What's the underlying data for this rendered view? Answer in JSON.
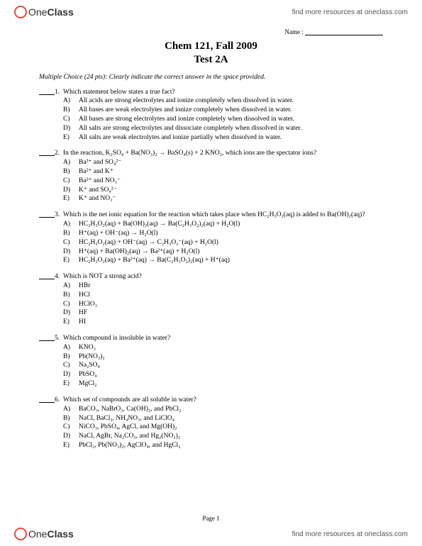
{
  "brand": {
    "one": "One",
    "class": "Class"
  },
  "find_link": "find more resources at oneclass.com",
  "name_label": "Name :",
  "title_line1": "Chem 121, Fall 2009",
  "title_line2": "Test 2A",
  "instructions": "Multiple Choice (24 pts): Clearly indicate the correct answer in the space provided.",
  "questions": [
    {
      "num": "1.",
      "text": "Which statement below states a true fact?",
      "options": [
        "All acids are strong electrolytes and ionize completely when dissolved in water.",
        "All bases are weak electrolytes and ionize completely when dissolved in water.",
        "All bases are strong electrolytes and ionize completely when dissolved in water.",
        "All salts are strong electrolytes and dissociate completely when dissolved in water.",
        "All salts are weak electrolytes and ionize partially when dissolved in water."
      ]
    },
    {
      "num": "2.",
      "text": "In the reaction, K₂SO₄ + Ba(NO₃)₂ → BaSO₄(s) + 2 KNO₃, which ions are the spectator ions?",
      "options": [
        "Ba²⁺ and SO₄²⁻",
        "Ba²⁺ and K⁺",
        "Ba²⁺ and NO₃⁻",
        "K⁺ and SO₄²⁻",
        "K⁺ and NO₃⁻"
      ]
    },
    {
      "num": "3.",
      "text": "Which is the net ionic equation for the reaction which takes place when HC₂H₃O₂(aq) is added to Ba(OH)₂(aq)?",
      "options": [
        "HC₂H₃O₂(aq) + Ba(OH)₂(aq) → Ba(C₂H₃O₂)₂(aq) + H₂O(l)",
        "H⁺(aq) + OH⁻(aq) → H₂O(l)",
        "HC₂H₃O₂(aq) + OH⁻(aq) → C₂H₃O₂⁻(aq) + H₂O(l)",
        "H⁺(aq) + Ba(OH)₂(aq) → Ba²⁺(aq) + H₂O(l)",
        "HC₂H₃O₂(aq) + Ba²⁺(aq) → Ba(C₂H₃O₂)₂(aq) + H⁺(aq)"
      ]
    },
    {
      "num": "4.",
      "text": "Which is NOT a strong acid?",
      "options": [
        "HBr",
        "HCl",
        "HClO₃",
        "HF",
        "HI"
      ]
    },
    {
      "num": "5.",
      "text": "Which compound is insoluble in water?",
      "options": [
        "KNO₃",
        "Pb(NO₃)₂",
        "Na₂SO₄",
        "PbSO₄",
        "MgCl₂"
      ]
    },
    {
      "num": "6.",
      "text": "Which set of compounds are all soluble in water?",
      "options": [
        "BaCO₃, NaBrO₃, Ca(OH)₂, and PbCl₂",
        "NaCl, BaCl₂, NH₄NO₃, and LiClO₄",
        "NiCO₃, PbSO₄, AgCl, and Mg(OH)₂",
        "NaCl, AgBr, Na₂CO₃, and Hg₂(NO₃)₂",
        "PbCl₂, Pb(NO₃)₂, AgClO₄, and HgCl₂"
      ]
    }
  ],
  "option_letters": [
    "A)",
    "B)",
    "C)",
    "D)",
    "E)"
  ],
  "page_num": "Page 1"
}
